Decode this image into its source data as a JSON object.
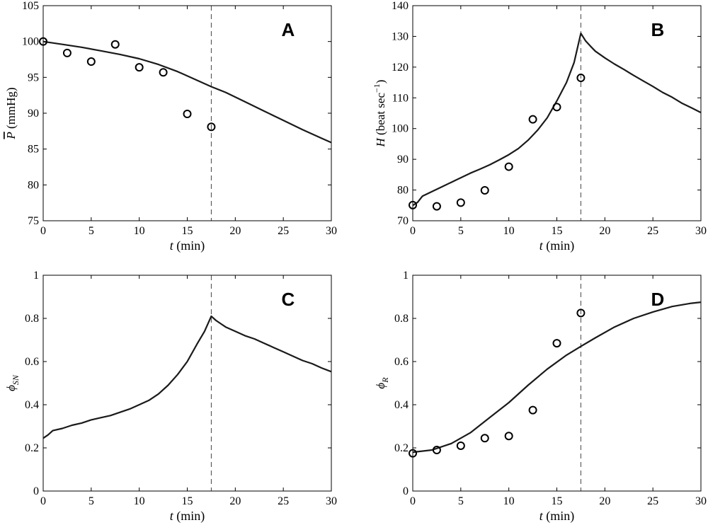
{
  "chart_data": [
    {
      "type": "line",
      "panel_label": "A",
      "xlabel": {
        "var": "t",
        "unit": " (min)"
      },
      "ylabel": {
        "var": "P",
        "overbar": true,
        "unit": " (mmHg)"
      },
      "xlim": [
        0,
        30
      ],
      "ylim": [
        75,
        105
      ],
      "xticks": [
        0,
        5,
        10,
        15,
        20,
        25,
        30
      ],
      "yticks": [
        75,
        80,
        85,
        90,
        95,
        100,
        105
      ],
      "vline_x": 17.5,
      "series": [
        {
          "kind": "model-line",
          "x": [
            0,
            2,
            4,
            6,
            8,
            10,
            12,
            14,
            16,
            17.5,
            19,
            21,
            23,
            25,
            27,
            29,
            30
          ],
          "y": [
            100,
            99.6,
            99.2,
            98.7,
            98.2,
            97.6,
            96.8,
            95.8,
            94.6,
            93.7,
            92.9,
            91.6,
            90.3,
            89.0,
            87.7,
            86.5,
            85.9
          ]
        },
        {
          "kind": "observed-points",
          "x": [
            0,
            2.5,
            5,
            7.5,
            10,
            12.5,
            15,
            17.5
          ],
          "y": [
            100,
            98.4,
            97.2,
            99.6,
            96.4,
            95.7,
            89.9,
            88.1
          ]
        }
      ]
    },
    {
      "type": "line",
      "panel_label": "B",
      "xlabel": {
        "var": "t",
        "unit": " (min)"
      },
      "ylabel": {
        "var": "H",
        "unit": " (beat sec",
        "exp": "−1",
        "close": ")"
      },
      "xlim": [
        0,
        30
      ],
      "ylim": [
        70,
        140
      ],
      "xticks": [
        0,
        5,
        10,
        15,
        20,
        25,
        30
      ],
      "yticks": [
        70,
        80,
        90,
        100,
        110,
        120,
        130,
        140
      ],
      "vline_x": 17.5,
      "series": [
        {
          "kind": "model-line",
          "x": [
            0,
            0.5,
            1,
            2,
            3,
            4,
            5,
            6,
            7,
            8,
            9,
            10,
            11,
            12,
            13,
            14,
            15,
            16,
            16.8,
            17.5,
            18,
            18.5,
            19,
            20,
            21,
            22,
            23,
            24,
            25,
            26,
            27,
            28,
            29,
            30
          ],
          "y": [
            75,
            76,
            78,
            79.5,
            81,
            82.5,
            84,
            85.5,
            86.8,
            88.2,
            89.8,
            91.5,
            93.5,
            96.2,
            99.5,
            103.5,
            109,
            115,
            121.5,
            131,
            128.5,
            126.8,
            125.2,
            123,
            121,
            119.2,
            117.3,
            115.5,
            113.7,
            111.8,
            110.2,
            108.3,
            106.8,
            105.2
          ]
        },
        {
          "kind": "observed-points",
          "x": [
            0,
            2.5,
            5,
            7.5,
            10,
            12.5,
            15,
            17.5
          ],
          "y": [
            75.1,
            74.7,
            75.9,
            79.9,
            87.6,
            103,
            107,
            116.5
          ]
        }
      ]
    },
    {
      "type": "line",
      "panel_label": "C",
      "xlabel": {
        "var": "t",
        "unit": " (min)"
      },
      "ylabel": {
        "var": "ϕ",
        "sub": "SN"
      },
      "xlim": [
        0,
        30
      ],
      "ylim": [
        0,
        1
      ],
      "xticks": [
        0,
        5,
        10,
        15,
        20,
        25,
        30
      ],
      "yticks": [
        0,
        0.2,
        0.4,
        0.6,
        0.8,
        1
      ],
      "vline_x": 17.5,
      "series": [
        {
          "kind": "model-line",
          "x": [
            0,
            0.5,
            1,
            2,
            3,
            4,
            5,
            6,
            7,
            8,
            9,
            10,
            11,
            12,
            13,
            14,
            15,
            16,
            16.8,
            17.5,
            18,
            18.5,
            19,
            20,
            21,
            22,
            23,
            24,
            25,
            26,
            27,
            28,
            29,
            30
          ],
          "y": [
            0.245,
            0.26,
            0.28,
            0.29,
            0.305,
            0.315,
            0.33,
            0.34,
            0.35,
            0.365,
            0.38,
            0.4,
            0.42,
            0.45,
            0.49,
            0.54,
            0.6,
            0.68,
            0.74,
            0.81,
            0.79,
            0.775,
            0.76,
            0.74,
            0.72,
            0.705,
            0.685,
            0.665,
            0.645,
            0.625,
            0.605,
            0.59,
            0.57,
            0.553
          ]
        }
      ]
    },
    {
      "type": "line",
      "panel_label": "D",
      "xlabel": {
        "var": "t",
        "unit": " (min)"
      },
      "ylabel": {
        "var": "ϕ",
        "sub": "R"
      },
      "xlim": [
        0,
        30
      ],
      "ylim": [
        0,
        1
      ],
      "xticks": [
        0,
        5,
        10,
        15,
        20,
        25,
        30
      ],
      "yticks": [
        0,
        0.2,
        0.4,
        0.6,
        0.8,
        1
      ],
      "vline_x": 17.5,
      "series": [
        {
          "kind": "model-line",
          "x": [
            0,
            2,
            4,
            6,
            8,
            10,
            12,
            14,
            16,
            17.5,
            19,
            21,
            23,
            25,
            27,
            29,
            30
          ],
          "y": [
            0.18,
            0.19,
            0.22,
            0.27,
            0.34,
            0.41,
            0.49,
            0.565,
            0.63,
            0.67,
            0.71,
            0.76,
            0.8,
            0.83,
            0.855,
            0.87,
            0.875
          ]
        },
        {
          "kind": "observed-points",
          "x": [
            0,
            2.5,
            5,
            7.5,
            10,
            12.5,
            15,
            17.5
          ],
          "y": [
            0.175,
            0.19,
            0.21,
            0.245,
            0.255,
            0.375,
            0.685,
            0.825
          ]
        }
      ]
    }
  ]
}
